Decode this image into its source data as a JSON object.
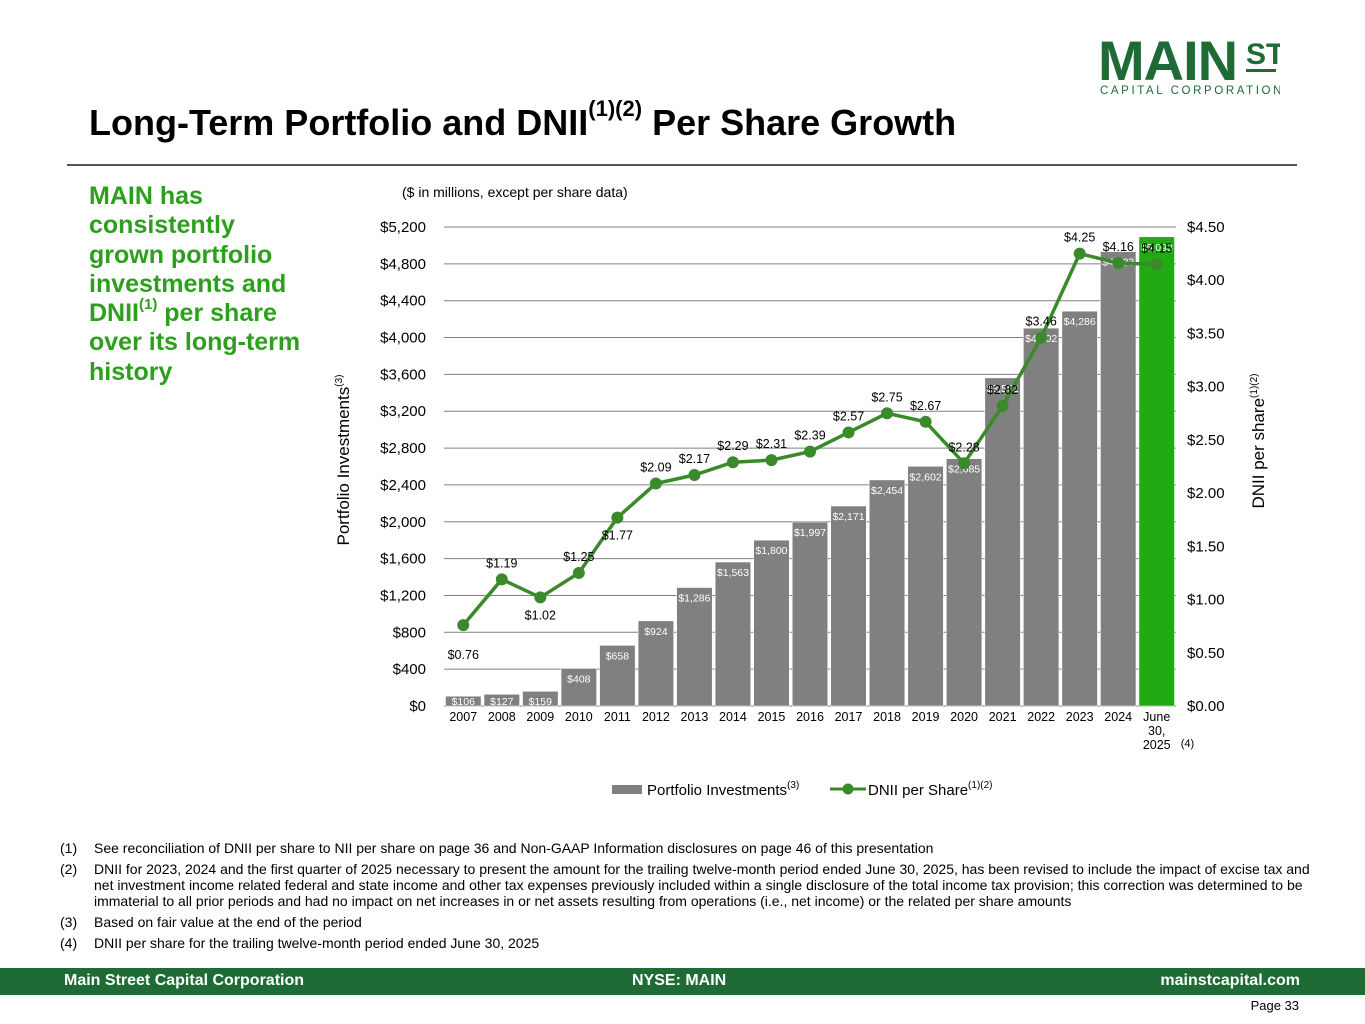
{
  "logo": {
    "main": "MAIN",
    "st": "ST",
    "sub": "CAPITAL CORPORATION",
    "color": "#1e6b35"
  },
  "title": {
    "text": "Long-Term Portfolio and DNII",
    "sup": "(1)(2)",
    "suffix": " Per Share Growth"
  },
  "callout": {
    "before": "MAIN has consistently grown portfolio investments and DNII",
    "sup": "(1)",
    "after": " per share over its long-term history"
  },
  "chart_data": {
    "type": "bar+line",
    "subtitle": "($ in millions, except per share data)",
    "categories": [
      "2007",
      "2008",
      "2009",
      "2010",
      "2011",
      "2012",
      "2013",
      "2014",
      "2015",
      "2016",
      "2017",
      "2018",
      "2019",
      "2020",
      "2021",
      "2022",
      "2023",
      "2024",
      "June 30, 2025"
    ],
    "last_category_note": "(4)",
    "series": [
      {
        "name": "Portfolio Investments",
        "sup": "(3)",
        "axis": "left",
        "type": "bar",
        "values": [
          106,
          127,
          159,
          408,
          658,
          924,
          1286,
          1563,
          1800,
          1997,
          2171,
          2454,
          2602,
          2685,
          3562,
          4102,
          4286,
          4933,
          5093
        ],
        "labels": [
          "$106",
          "$127",
          "$159",
          "$408",
          "$658",
          "$924",
          "$1,286",
          "$1,563",
          "$1,800",
          "$1,997",
          "$2,171",
          "$2,454",
          "$2,602",
          "$2,685",
          "$3,562",
          "$4,102",
          "$4,286",
          "$4,933",
          "$5,093"
        ]
      },
      {
        "name": "DNII per Share",
        "sup": "(1)(2)",
        "axis": "right",
        "type": "line",
        "values": [
          0.76,
          1.19,
          1.02,
          1.25,
          1.77,
          2.09,
          2.17,
          2.29,
          2.31,
          2.39,
          2.57,
          2.75,
          2.67,
          2.28,
          2.82,
          3.46,
          4.25,
          4.16,
          4.15
        ],
        "labels": [
          "$0.76",
          "$1.19",
          "$1.02",
          "$1.25",
          "$1.77",
          "$2.09",
          "$2.17",
          "$2.29",
          "$2.31",
          "$2.39",
          "$2.57",
          "$2.75",
          "$2.67",
          "$2.28",
          "$2.82",
          "$3.46",
          "$4.25",
          "$4.16",
          "$4.15"
        ]
      }
    ],
    "ylabel": "Portfolio Investments",
    "ylabel_sup": "(3)",
    "y2label": "DNII per share",
    "y2label_sup": "(1)(2)",
    "ylim": [
      0,
      5200
    ],
    "y2lim": [
      0,
      4.5
    ],
    "yticks": [
      "$0",
      "$400",
      "$800",
      "$1,200",
      "$1,600",
      "$2,000",
      "$2,400",
      "$2,800",
      "$3,200",
      "$3,600",
      "$4,000",
      "$4,400",
      "$4,800",
      "$5,200"
    ],
    "y2ticks": [
      "$0.00",
      "$0.50",
      "$1.00",
      "$1.50",
      "$2.00",
      "$2.50",
      "$3.00",
      "$3.50",
      "$4.00",
      "$4.50"
    ],
    "colors": {
      "bar": "#808080",
      "bar_highlight": "#22aa14",
      "line": "#3a8a2c",
      "grid": "#808080"
    },
    "grid": true,
    "legend": "bottom"
  },
  "footnotes": [
    {
      "num": "(1)",
      "text": "See reconciliation of DNII per share to NII per share on page 36 and Non-GAAP Information disclosures on page 46 of this presentation"
    },
    {
      "num": "(2)",
      "text": "DNII for 2023, 2024 and the first quarter of 2025 necessary to present the amount for the trailing twelve-month period ended June 30, 2025, has been revised to include the impact of excise tax and net investment income related federal and state income and other tax expenses previously included within a single disclosure of the total income tax provision; this correction was determined to be immaterial to all prior periods and had no impact on net increases in or net assets resulting from operations (i.e., net income) or the related per share amounts"
    },
    {
      "num": "(3)",
      "text": "Based on fair value at the end of the period"
    },
    {
      "num": "(4)",
      "text": "DNII per share for the trailing twelve-month period ended June 30, 2025"
    }
  ],
  "footer": {
    "left": "Main Street Capital Corporation",
    "center": "NYSE: MAIN",
    "right": "mainstcapital.com"
  },
  "page": "Page  33"
}
